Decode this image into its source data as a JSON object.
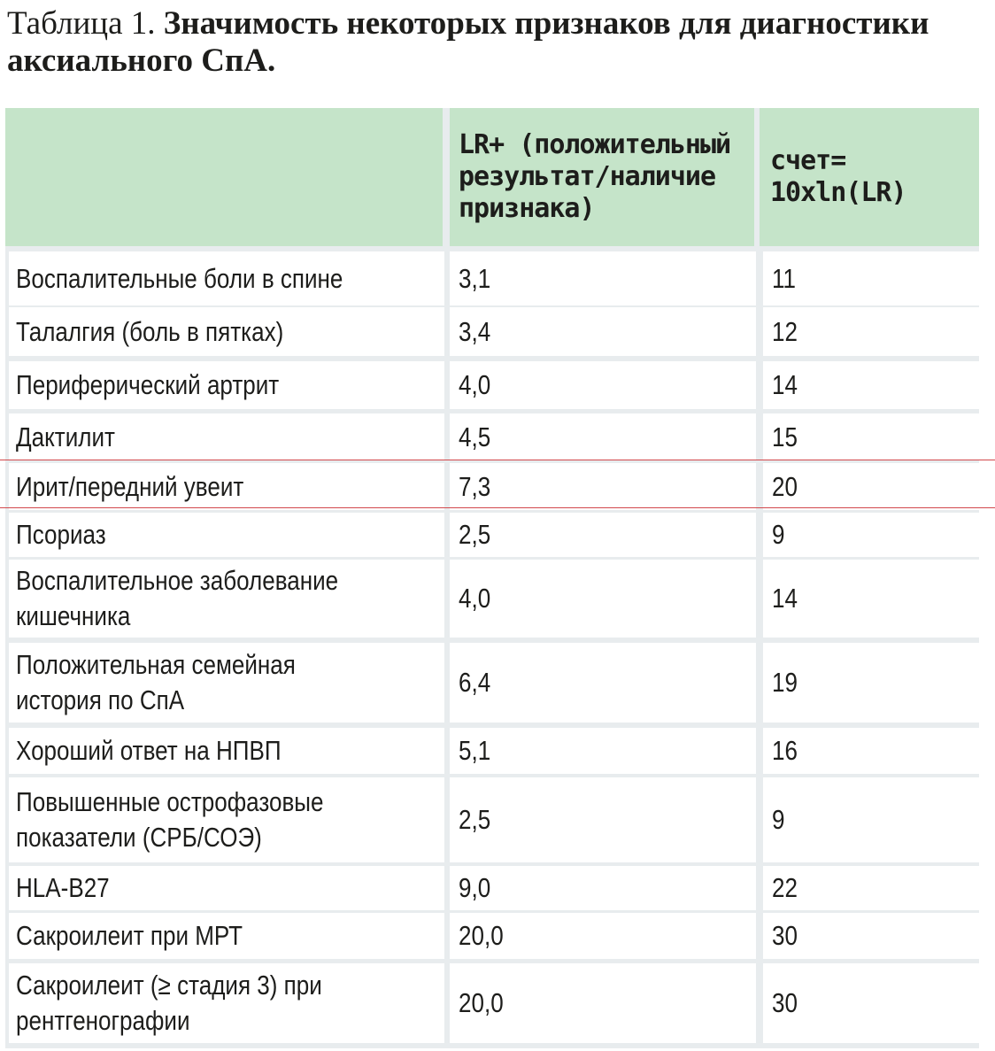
{
  "caption": {
    "label": "Таблица 1. ",
    "title": "Значимость некоторых признаков для диагностики аксиального СпА."
  },
  "table": {
    "headers": [
      "",
      "LR+ (положительный результат/наличие признака)",
      "счет= 10xln(LR)"
    ],
    "rows": [
      {
        "sign": "Воспалительные боли в спине",
        "lr": "3,1",
        "score": "11"
      },
      {
        "sign": "Талалгия (боль в пятках)",
        "lr": "3,4",
        "score": "12"
      },
      {
        "sign": "Периферический артрит",
        "lr": "4,0",
        "score": "14"
      },
      {
        "sign": "Дактилит",
        "lr": "4,5",
        "score": "15"
      },
      {
        "sign": "Ирит/передний увеит",
        "lr": "7,3",
        "score": "20"
      },
      {
        "sign": "Псориаз",
        "lr": "2,5",
        "score": "9"
      },
      {
        "sign": "Воспалительное заболевание кишечника",
        "lr": "4,0",
        "score": "14"
      },
      {
        "sign": "Положительная семейная история по СпА",
        "lr": "6,4",
        "score": "19"
      },
      {
        "sign": "Хороший ответ на НПВП",
        "lr": "5,1",
        "score": "16"
      },
      {
        "sign": "Повышенные острофазовые показатели (СРБ/СОЭ)",
        "lr": "2,5",
        "score": "9"
      },
      {
        "sign": "HLA-B27",
        "lr": "9,0",
        "score": "22"
      },
      {
        "sign": "Сакроилеит при МРТ",
        "lr": "20,0",
        "score": "30"
      },
      {
        "sign": "Сакроилеит (≥ стадия 3) при рентгенографии",
        "lr": "20,0",
        "score": "30"
      }
    ]
  },
  "colors": {
    "header_bg": "#c5e4c9",
    "grid": "#e8ecee",
    "highlight_line": "#d2494c"
  }
}
